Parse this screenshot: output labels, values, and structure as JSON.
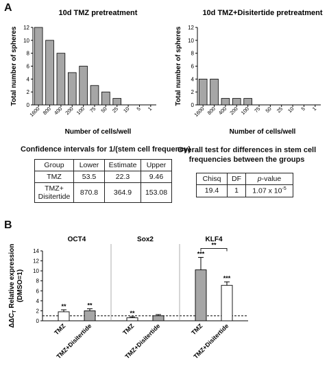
{
  "panel_a_label": "A",
  "panel_b_label": "B",
  "chart_data": [
    {
      "type": "bar",
      "title": "10d TMZ pretreatment",
      "xlabel": "Number of cells/well",
      "ylabel": "Total number of spheres",
      "categories": [
        "1600",
        "800",
        "400",
        "200",
        "100",
        "75",
        "50",
        "25",
        "10",
        "5",
        "1"
      ],
      "values": [
        12,
        10,
        8,
        5,
        6,
        3,
        2,
        1,
        0,
        0,
        0
      ],
      "ylim": [
        0,
        12
      ],
      "yticks": [
        0,
        2,
        4,
        6,
        8,
        10,
        12
      ],
      "bar_color": "#a6a6a6"
    },
    {
      "type": "bar",
      "title": "10d TMZ+Disitertide pretreatment",
      "xlabel": "Number of cells/well",
      "ylabel": "Total number of spheres",
      "categories": [
        "1600",
        "800",
        "400",
        "200",
        "100",
        "75",
        "50",
        "25",
        "10",
        "5",
        "1"
      ],
      "values": [
        4,
        4,
        1,
        1,
        1,
        0,
        0,
        0,
        0,
        0,
        0
      ],
      "ylim": [
        0,
        12
      ],
      "yticks": [
        0,
        2,
        4,
        6,
        8,
        10,
        12
      ],
      "bar_color": "#a6a6a6"
    },
    {
      "type": "bar",
      "ylabel_main": "ΔΔC",
      "ylabel_sub": "T",
      "ylabel_rest": " Relative expression",
      "ylabel_line2": "(DMSO=1)",
      "ylim": [
        0,
        14
      ],
      "yticks": [
        0,
        2,
        4,
        6,
        8,
        10,
        12,
        14
      ],
      "reference_line": 1,
      "groups": [
        {
          "name": "OCT4",
          "bars": [
            {
              "label": "TMZ",
              "value": 1.8,
              "error": 0.4,
              "color": "#ffffff",
              "sig": "**"
            },
            {
              "label": "TMZ+Disitertide",
              "value": 2.0,
              "error": 0.4,
              "color": "#a6a6a6",
              "sig": "**"
            }
          ]
        },
        {
          "name": "Sox2",
          "bars": [
            {
              "label": "TMZ",
              "value": 0.6,
              "error": 0.2,
              "color": "#ffffff",
              "sig": "**"
            },
            {
              "label": "TMZ+Disitertide",
              "value": 1.0,
              "error": 0.25,
              "color": "#a6a6a6",
              "sig": ""
            }
          ]
        },
        {
          "name": "KLF4",
          "bars": [
            {
              "label": "TMZ",
              "value": 10.2,
              "error": 2.5,
              "color": "#a6a6a6",
              "sig": "***"
            },
            {
              "label": "TMZ+Disitertide",
              "value": 7.1,
              "error": 0.7,
              "color": "#ffffff",
              "sig": "***"
            }
          ]
        }
      ],
      "bracket_sig": "**"
    }
  ],
  "ci_table": {
    "caption": "Confidence intervals for 1/(stem cell frequency)",
    "headers": [
      "Group",
      "Lower",
      "Estimate",
      "Upper"
    ],
    "rows": [
      {
        "group": "TMZ",
        "lower": "53.5",
        "estimate": "22.3",
        "upper": "9.46"
      },
      {
        "group_line1": "TMZ+",
        "group_line2": "Disitertide",
        "lower": "870.8",
        "estimate": "364.9",
        "upper": "153.08"
      }
    ]
  },
  "overall_table": {
    "caption_line1": "Overall test for differences in stem cell",
    "caption_line2": "frequencies between the groups",
    "headers": [
      "Chisq",
      "DF",
      "p",
      "-value"
    ],
    "row": {
      "chisq": "19.4",
      "df": "1",
      "pvalue_base": "1.07 x 10",
      "pvalue_exp": "-5"
    }
  }
}
